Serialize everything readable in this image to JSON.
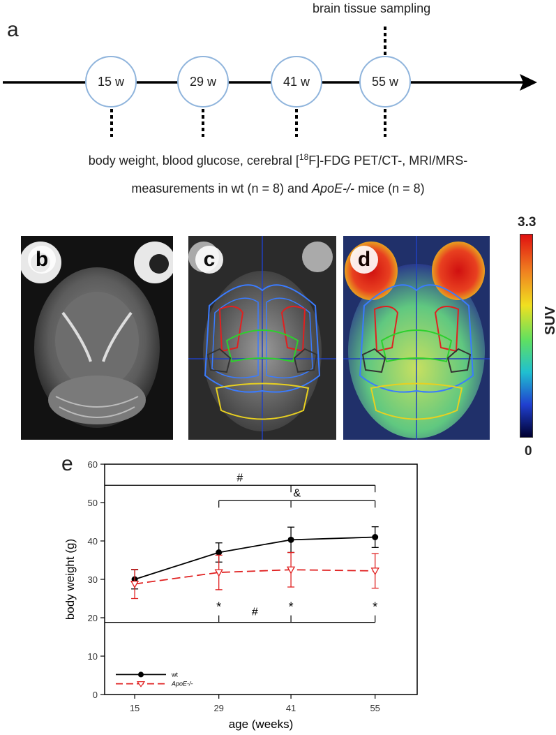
{
  "panel_a": {
    "letter": "a",
    "sampling_label": "brain tissue sampling",
    "timepoints": [
      "15 w",
      "29 w",
      "41 w",
      "55 w"
    ],
    "caption_line1_pre": "body weight, blood glucose, cerebral [",
    "caption_line1_sup": "18",
    "caption_line1_post": "F]-FDG PET/CT-,  MRI/MRS-",
    "caption_line2_pre": "measurements in wt (n = 8) and ",
    "caption_line2_em": "ApoE-/-",
    "caption_line2_post": " mice (n = 8)"
  },
  "panel_b": {
    "letter": "b"
  },
  "panel_c": {
    "letter": "c"
  },
  "panel_d": {
    "letter": "d"
  },
  "colorbar": {
    "max_label": "3.3",
    "min_label": "0",
    "title": "SUV"
  },
  "panel_e": {
    "letter": "e"
  },
  "chart_data": {
    "type": "line",
    "x": [
      15,
      29,
      41,
      55
    ],
    "xticks": [
      "15",
      "29",
      "41",
      "55"
    ],
    "xlabel": "age (weeks)",
    "ylabel": "body weight  (g)",
    "ylim": [
      0,
      60
    ],
    "yticks": [
      "0",
      "10",
      "20",
      "30",
      "40",
      "50",
      "60"
    ],
    "series": [
      {
        "name": "wt",
        "values": [
          30.0,
          37.0,
          40.3,
          41.0
        ],
        "errors": [
          2.5,
          2.5,
          3.3,
          2.7
        ],
        "color": "#000000",
        "marker": "filled-circle",
        "dash": "solid"
      },
      {
        "name": "ApoE-/-",
        "values": [
          28.8,
          31.8,
          32.5,
          32.2
        ],
        "errors": [
          3.8,
          4.5,
          4.5,
          4.5
        ],
        "color": "#e02020",
        "marker": "open-triangle-down",
        "dash": "dashed"
      }
    ],
    "annotations": {
      "top_hash": "#",
      "top_amp": "&",
      "bottom_hash": "#",
      "stars": [
        "*",
        "*",
        "*"
      ]
    },
    "legend_placement": "bottom-left"
  }
}
